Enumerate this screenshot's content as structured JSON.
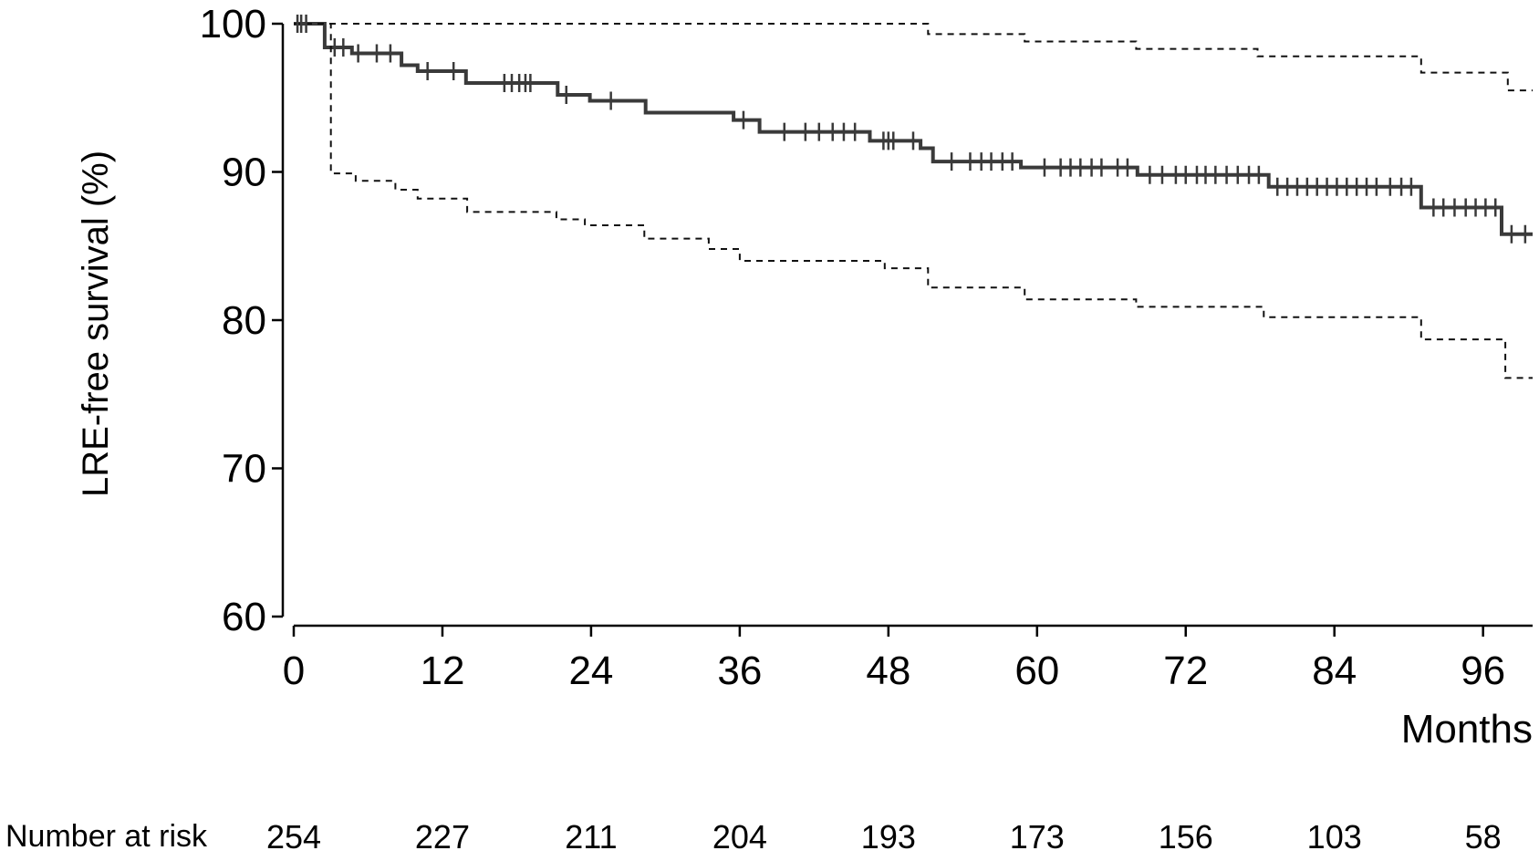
{
  "chart_data": {
    "type": "line",
    "title": "",
    "xlabel": "Months",
    "ylabel": "LRE-free survival (%)",
    "xlim": [
      0,
      100
    ],
    "ylim": [
      60,
      100
    ],
    "xticks": [
      0,
      12,
      24,
      36,
      48,
      60,
      72,
      84,
      96
    ],
    "yticks": [
      60,
      70,
      80,
      90,
      100
    ],
    "grid": false,
    "series": [
      {
        "role": "estimate",
        "style": "solid-step",
        "points": [
          [
            0,
            100
          ],
          [
            2.5,
            98.4
          ],
          [
            4.7,
            98.0
          ],
          [
            8.7,
            97.2
          ],
          [
            10,
            96.8
          ],
          [
            13.9,
            96.0
          ],
          [
            21.3,
            95.2
          ],
          [
            23.9,
            94.8
          ],
          [
            28.4,
            94.0
          ],
          [
            35.5,
            93.5
          ],
          [
            37.6,
            92.7
          ],
          [
            46.5,
            92.1
          ],
          [
            50.6,
            91.6
          ],
          [
            51.6,
            90.7
          ],
          [
            58.7,
            90.3
          ],
          [
            68.1,
            89.8
          ],
          [
            78.7,
            89.0
          ],
          [
            91,
            87.6
          ],
          [
            97.5,
            85.8
          ],
          [
            100,
            85.8
          ]
        ],
        "censor_times": [
          0.3,
          0.6,
          1,
          3.3,
          4,
          5.2,
          6.7,
          7.8,
          10.8,
          12.9,
          17,
          17.6,
          18.2,
          18.7,
          19.1,
          22,
          25.6,
          36.3,
          39.6,
          41.3,
          42.4,
          43.5,
          44.4,
          45.3,
          47.6,
          48,
          48.4,
          50,
          53.1,
          54.6,
          55.5,
          56.3,
          57.2,
          58,
          60.6,
          61.9,
          62.7,
          63.5,
          64.4,
          65.2,
          66.5,
          67.3,
          69.1,
          70.1,
          71.2,
          72,
          72.9,
          73.6,
          74.4,
          75.3,
          76.2,
          77.1,
          77.9,
          79.4,
          80.2,
          81,
          81.8,
          82.6,
          83.4,
          84.2,
          85,
          85.8,
          86.6,
          87.4,
          88.5,
          89.4,
          90.2,
          92,
          92.8,
          93.7,
          94.6,
          95.4,
          96.2,
          97,
          98.3,
          99.4
        ]
      },
      {
        "role": "upper confidence limit",
        "style": "dashed-step",
        "points": [
          [
            0,
            100
          ],
          [
            51.2,
            99.3
          ],
          [
            59,
            98.8
          ],
          [
            68,
            98.3
          ],
          [
            77.8,
            97.8
          ],
          [
            91,
            96.7
          ],
          [
            98,
            95.5
          ],
          [
            100,
            95.5
          ]
        ]
      },
      {
        "role": "lower confidence limit",
        "style": "dashed-step",
        "points": [
          [
            0,
            100
          ],
          [
            3,
            89.9
          ],
          [
            5,
            89.4
          ],
          [
            8.2,
            88.8
          ],
          [
            10,
            88.2
          ],
          [
            14,
            87.3
          ],
          [
            21.2,
            86.8
          ],
          [
            23.5,
            86.4
          ],
          [
            28.3,
            85.5
          ],
          [
            33.5,
            84.8
          ],
          [
            36,
            84.0
          ],
          [
            47.7,
            83.5
          ],
          [
            51.2,
            82.2
          ],
          [
            59,
            81.4
          ],
          [
            68,
            80.9
          ],
          [
            78.3,
            80.2
          ],
          [
            91,
            78.7
          ],
          [
            97.8,
            76.1
          ],
          [
            100,
            76.1
          ]
        ]
      }
    ],
    "risk_table": {
      "label": "Number at risk",
      "times": [
        0,
        12,
        24,
        36,
        48,
        60,
        72,
        84,
        96
      ],
      "values": [
        "254",
        "227",
        "211",
        "204",
        "193",
        "173",
        "156",
        "103",
        "58"
      ]
    }
  }
}
